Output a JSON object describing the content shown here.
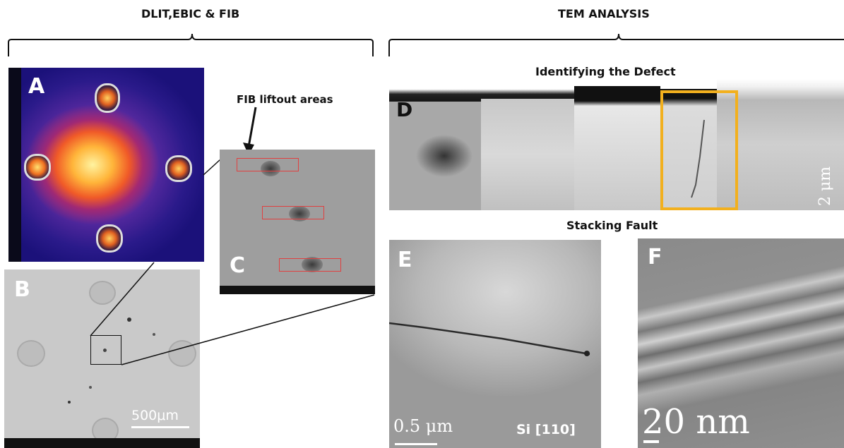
{
  "headers": {
    "left": "DLIT,EBIC & FIB",
    "right": "TEM ANALYSIS"
  },
  "subtitles": {
    "identifying": "Identifying the Defect",
    "stacking": "Stacking Fault"
  },
  "annotations": {
    "fib": "FIB liftout areas"
  },
  "panels": {
    "a": {
      "letter": "A"
    },
    "b": {
      "letter": "B",
      "scale": "500μm"
    },
    "c": {
      "letter": "C"
    },
    "d": {
      "letter": "D",
      "scale": "2 μm"
    },
    "e": {
      "letter": "E",
      "scale": "0.5 μm",
      "label": "Si [110]"
    },
    "f": {
      "letter": "F",
      "scale": "20 nm"
    }
  },
  "colors": {
    "highlight": "#f2b01e",
    "liftout_box": "#e04040"
  }
}
